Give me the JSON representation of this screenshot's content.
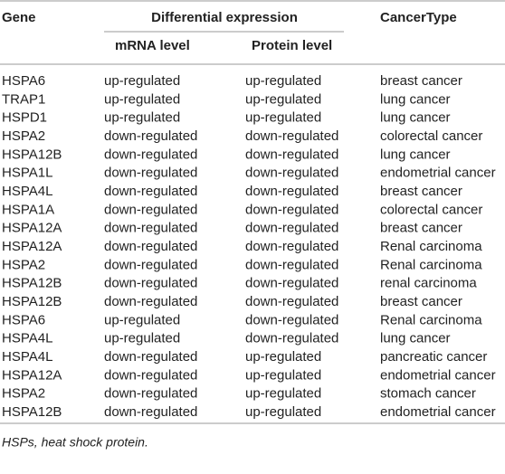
{
  "table": {
    "headers": {
      "gene": "Gene",
      "group": "Differential expression",
      "mrna": "mRNA level",
      "protein": "Protein level",
      "cancer": "CancerType"
    },
    "rows": [
      [
        "HSPA6",
        "up-regulated",
        "up-regulated",
        "breast cancer"
      ],
      [
        "TRAP1",
        "up-regulated",
        "up-regulated",
        "lung cancer"
      ],
      [
        "HSPD1",
        "up-regulated",
        "up-regulated",
        "lung cancer"
      ],
      [
        "HSPA2",
        "down-regulated",
        "down-regulated",
        "colorectal cancer"
      ],
      [
        "HSPA12B",
        "down-regulated",
        "down-regulated",
        "lung cancer"
      ],
      [
        "HSPA1L",
        "down-regulated",
        "down-regulated",
        "endometrial cancer"
      ],
      [
        "HSPA4L",
        "down-regulated",
        "down-regulated",
        "breast cancer"
      ],
      [
        "HSPA1A",
        "down-regulated",
        "down-regulated",
        "colorectal cancer"
      ],
      [
        "HSPA12A",
        "down-regulated",
        "down-regulated",
        "breast cancer"
      ],
      [
        "HSPA12A",
        "down-regulated",
        "down-regulated",
        "Renal carcinoma"
      ],
      [
        "HSPA2",
        "down-regulated",
        "down-regulated",
        "Renal carcinoma"
      ],
      [
        "HSPA12B",
        "down-regulated",
        "down-regulated",
        "renal carcinoma"
      ],
      [
        "HSPA12B",
        "down-regulated",
        "down-regulated",
        "breast cancer"
      ],
      [
        "HSPA6",
        "up-regulated",
        "down-regulated",
        "Renal carcinoma"
      ],
      [
        "HSPA4L",
        "up-regulated",
        "down-regulated",
        "lung cancer"
      ],
      [
        "HSPA4L",
        "down-regulated",
        "up-regulated",
        "pancreatic cancer"
      ],
      [
        "HSPA12A",
        "down-regulated",
        "up-regulated",
        "endometrial cancer"
      ],
      [
        "HSPA2",
        "down-regulated",
        "up-regulated",
        "stomach cancer"
      ],
      [
        "HSPA12B",
        "down-regulated",
        "up-regulated",
        "endometrial cancer"
      ]
    ],
    "footnote": "HSPs, heat shock protein."
  }
}
